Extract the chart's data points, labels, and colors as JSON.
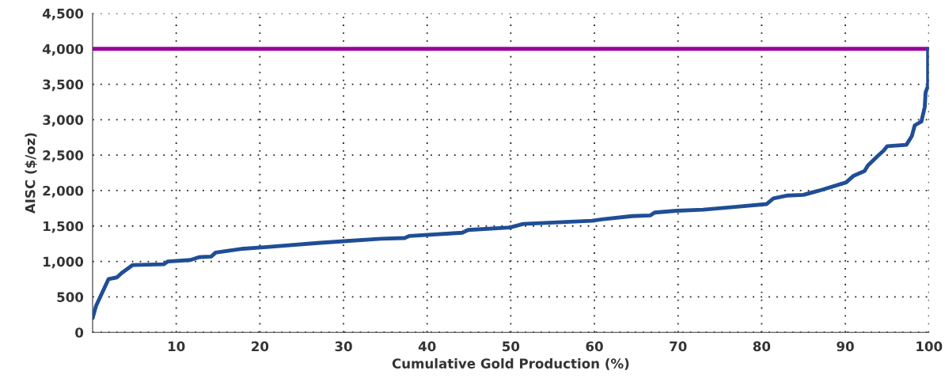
{
  "chart_data": {
    "type": "line",
    "xlabel": "Cumulative Gold Production (%)",
    "ylabel": "AISC ($/oz)",
    "xlim": [
      0,
      100
    ],
    "xticks": [
      10,
      20,
      30,
      40,
      50,
      60,
      70,
      80,
      90,
      100
    ],
    "ylim": [
      0,
      4500
    ],
    "yticks": [
      0,
      {
        "value": 500,
        "label": "500"
      },
      {
        "value": 1000,
        "label": "1,000"
      },
      {
        "value": 1500,
        "label": "1,500"
      },
      {
        "value": 2000,
        "label": "2,000"
      },
      {
        "value": 2500,
        "label": "2,500"
      },
      {
        "value": 3000,
        "label": "3,000"
      },
      {
        "value": 3500,
        "label": "3,500"
      },
      {
        "value": 4000,
        "label": "4,000"
      },
      {
        "value": 4500,
        "label": "4,500"
      }
    ],
    "grid": true,
    "marker": "none",
    "line_style": "solid",
    "ref_lines": [
      {
        "axis": "y",
        "value": 4000,
        "label": null,
        "color": "#990099"
      }
    ],
    "series": [
      {
        "color": "#1f4e96",
        "x": [
          0.0,
          0.4,
          1.9,
          2.9,
          3.5,
          4.8,
          8.5,
          9.0,
          11.7,
          12.7,
          14.2,
          14.7,
          18.0,
          20.5,
          26.9,
          30.0,
          34.5,
          37.3,
          37.9,
          44.2,
          44.9,
          49.9,
          51.5,
          59.7,
          61.3,
          64.5,
          66.7,
          67.2,
          69.8,
          73.0,
          76.8,
          80.6,
          81.4,
          83.1,
          85.0,
          86.9,
          89.4,
          90.1,
          91.0,
          92.3,
          92.7,
          93.9,
          94.6,
          95.0,
          97.3,
          97.96,
          98.3,
          99.1,
          99.5,
          99.6,
          99.9,
          99.9
        ],
        "values": [
          200,
          370,
          750,
          775,
          840,
          950,
          960,
          1000,
          1020,
          1060,
          1070,
          1125,
          1180,
          1200,
          1260,
          1285,
          1320,
          1330,
          1360,
          1405,
          1445,
          1480,
          1530,
          1575,
          1600,
          1640,
          1650,
          1690,
          1715,
          1730,
          1770,
          1810,
          1890,
          1930,
          1940,
          2000,
          2090,
          2115,
          2210,
          2275,
          2355,
          2490,
          2565,
          2625,
          2645,
          2770,
          2920,
          2975,
          3180,
          3385,
          3480,
          4000
        ]
      }
    ]
  }
}
